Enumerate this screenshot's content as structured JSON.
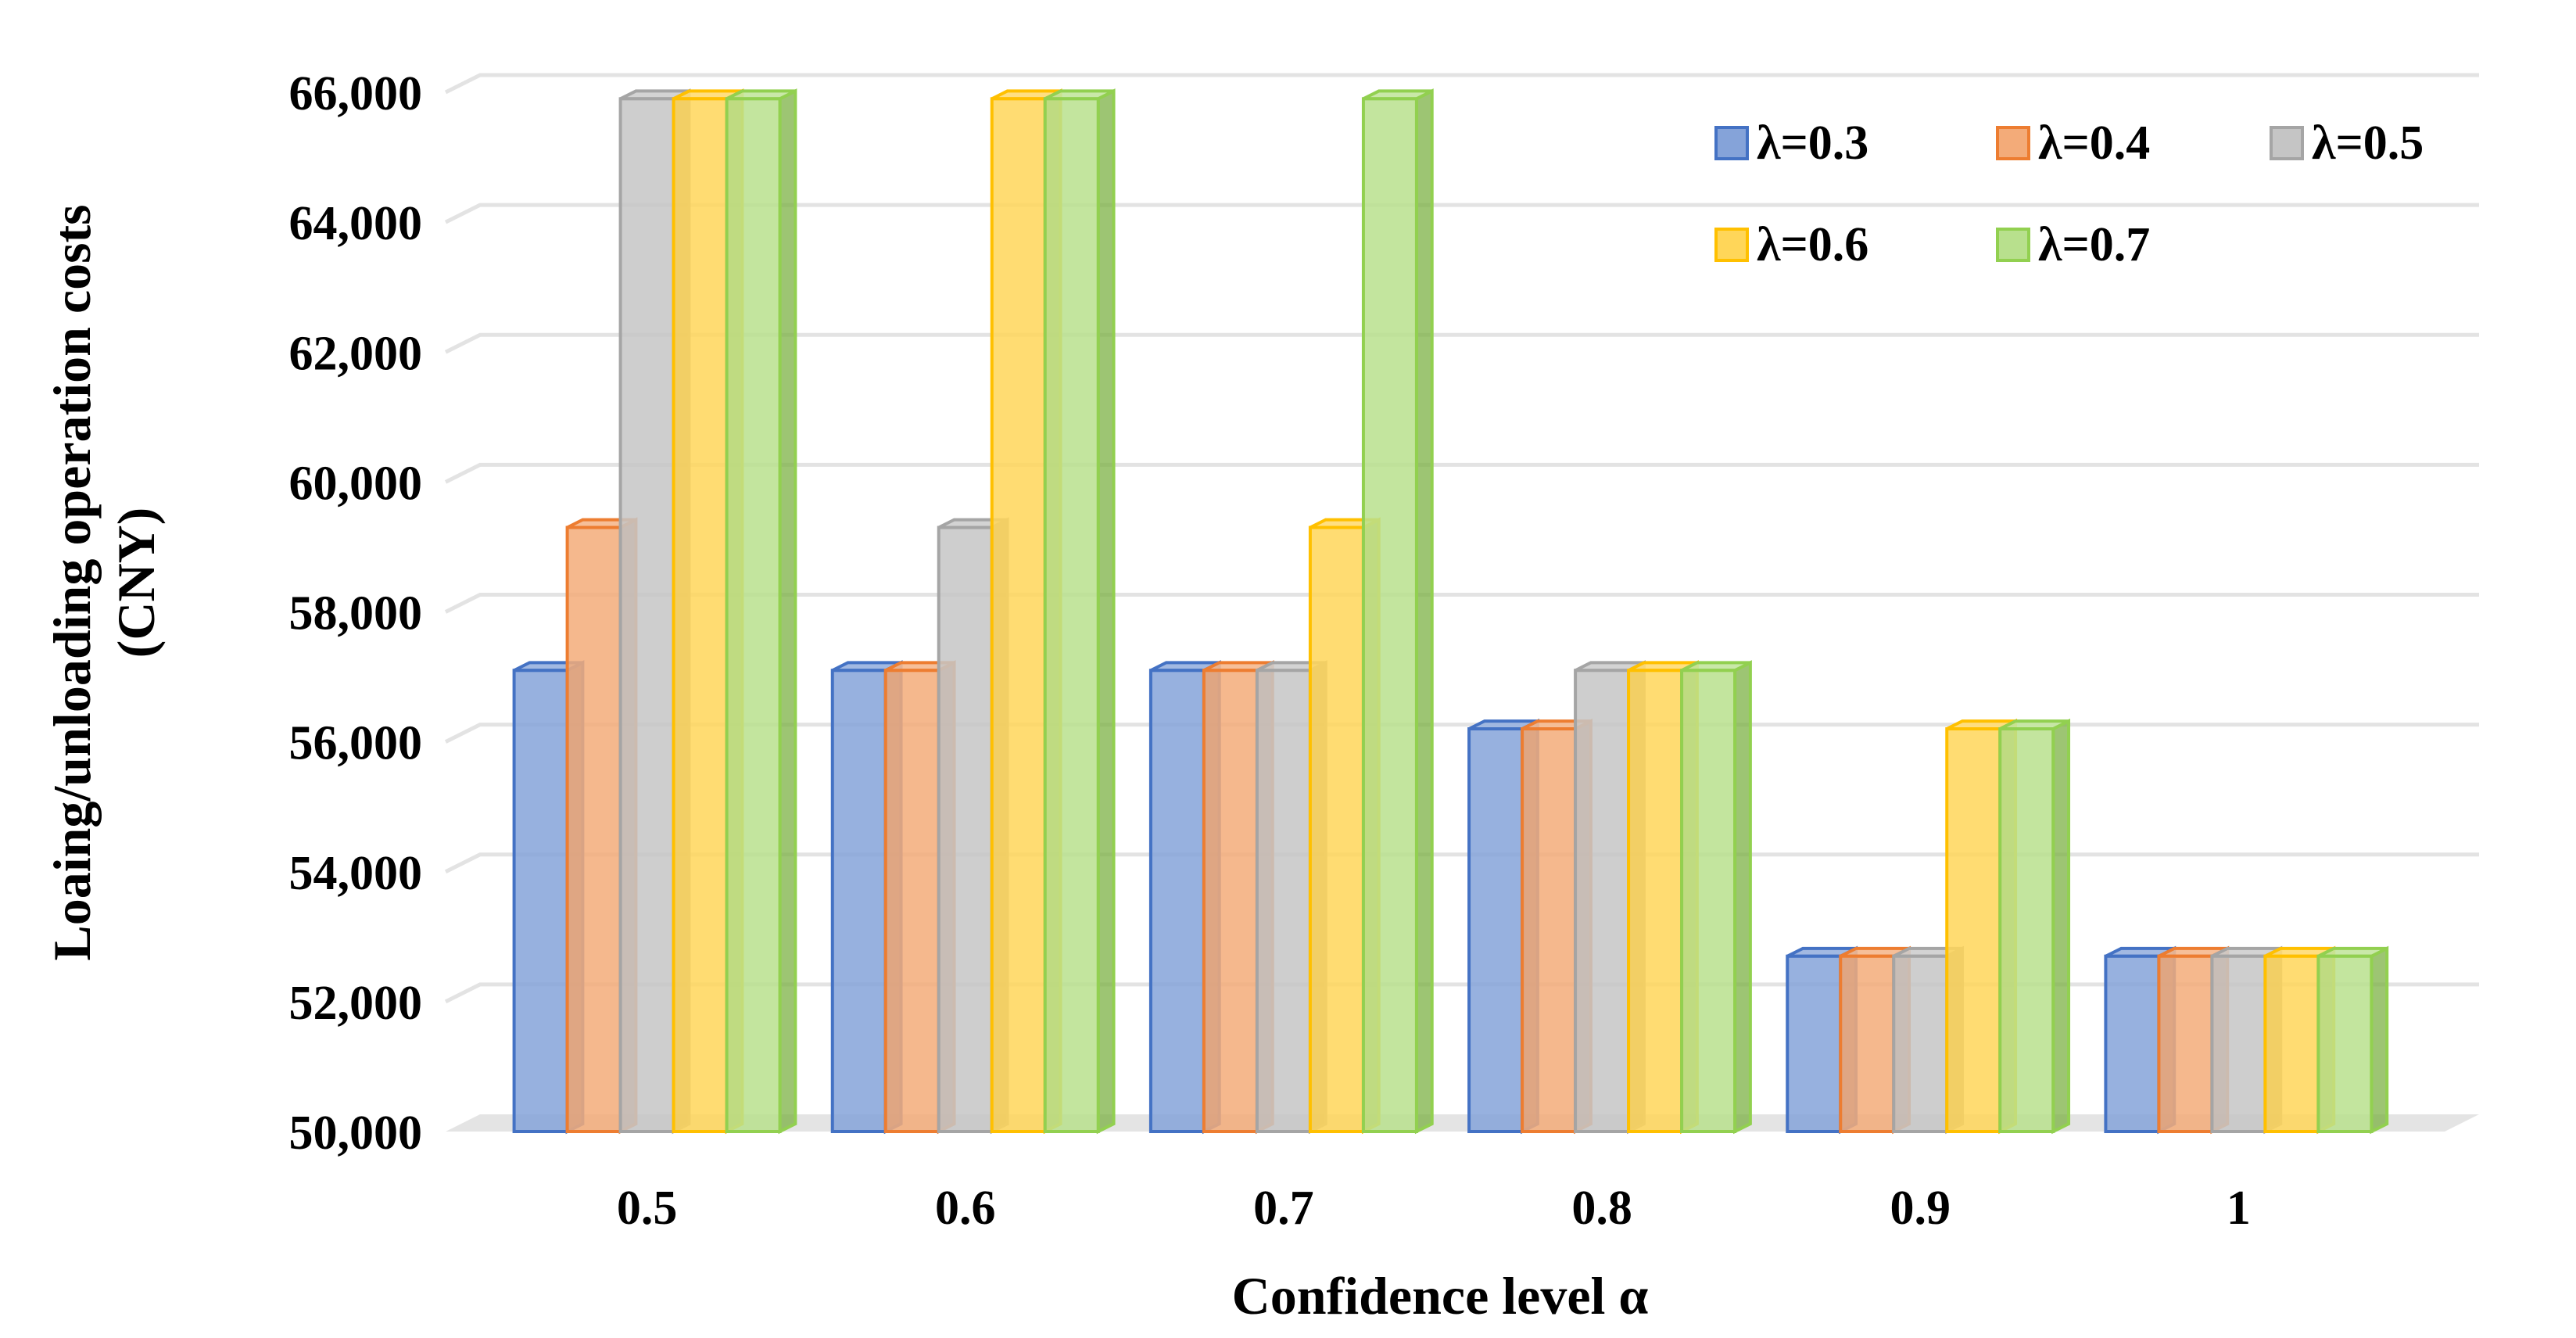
{
  "chart_data": {
    "type": "bar",
    "style": "3d-clustered-column",
    "title": "",
    "xlabel": "Confidence level α",
    "ylabel_lines": [
      "Loaing/unloading operation costs",
      "(CNY)"
    ],
    "ylim": [
      50000,
      66000
    ],
    "yticks": [
      50000,
      52000,
      54000,
      56000,
      58000,
      60000,
      62000,
      64000,
      66000
    ],
    "ytick_labels": [
      "50,000",
      "52,000",
      "54,000",
      "56,000",
      "58,000",
      "60,000",
      "62,000",
      "64,000",
      "66,000"
    ],
    "categories": [
      "0.5",
      "0.6",
      "0.7",
      "0.8",
      "0.9",
      "1"
    ],
    "grid": true,
    "legend_position": "top-right",
    "series": [
      {
        "name": "λ=0.3",
        "color": "#4472C4",
        "values": [
          57100,
          57100,
          57100,
          56200,
          52700,
          52700
        ]
      },
      {
        "name": "λ=0.4",
        "color": "#ED7D31",
        "values": [
          59300,
          57100,
          57100,
          56200,
          52700,
          52700
        ]
      },
      {
        "name": "λ=0.5",
        "color": "#A5A5A5",
        "values": [
          65900,
          59300,
          57100,
          57100,
          52700,
          52700
        ]
      },
      {
        "name": "λ=0.6",
        "color": "#FFC000",
        "values": [
          65900,
          65900,
          59300,
          57100,
          56200,
          52700
        ]
      },
      {
        "name": "λ=0.7",
        "color": "#92D050",
        "values": [
          65900,
          65900,
          65900,
          57100,
          56200,
          52700
        ]
      }
    ]
  }
}
